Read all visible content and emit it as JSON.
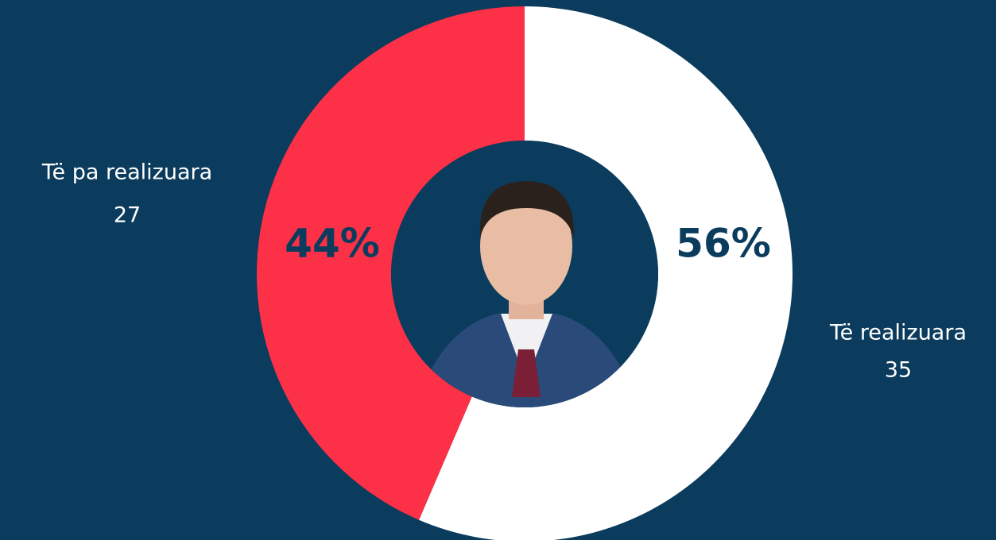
{
  "chart_data": {
    "type": "donut",
    "categories": [
      "Të realizuara",
      "Të pa realizuara"
    ],
    "values": [
      35,
      27
    ],
    "percentages": [
      56,
      44
    ],
    "percentage_labels": [
      "56%",
      "44%"
    ],
    "colors": [
      "#ffffff",
      "#fc3046"
    ]
  }
}
